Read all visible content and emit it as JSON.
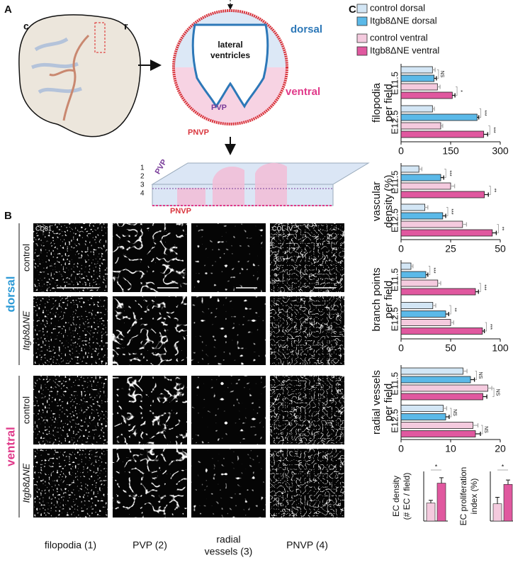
{
  "panel_a": {
    "label": "A",
    "c": "c",
    "r": "r",
    "dorsal": "dorsal",
    "lateral_ventricles": [
      "lateral",
      "ventricles"
    ],
    "ventral": "ventral",
    "pvp": "PVP",
    "pnvp": "PNVP",
    "layers": [
      "1",
      "2",
      "3",
      "4"
    ],
    "slab_pvp": "PVP",
    "slab_pnvp": "PNVP"
  },
  "panel_b": {
    "label": "B",
    "stain_left": "CD31",
    "stain_right": "COL IV",
    "regions": [
      {
        "name": "dorsal",
        "rows": [
          "control",
          "Itgb8ΔNE"
        ]
      },
      {
        "name": "ventral",
        "rows": [
          "control",
          "Itgb8ΔNE"
        ]
      }
    ],
    "columns": [
      [
        "filopodia (1)"
      ],
      [
        "PVP (2)"
      ],
      [
        "radial",
        "vessels (3)"
      ],
      [
        "PNVP (4)"
      ]
    ]
  },
  "panel_c": {
    "label": "C",
    "legend": [
      {
        "name": "control dorsal",
        "color": "#d3e6f5"
      },
      {
        "name": "Itgb8ΔNE dorsal",
        "color": "#5bb9e8"
      },
      {
        "name": "control ventral",
        "color": "#f4cade"
      },
      {
        "name": "Itgb8ΔNE ventral",
        "color": "#e0589f"
      }
    ]
  },
  "chart_data": [
    {
      "type": "hbar",
      "ylabel": [
        "filopodia",
        "per field"
      ],
      "categories": [
        "E11.5",
        "E12.5"
      ],
      "series": [
        {
          "values": [
            95,
            95
          ],
          "errors": [
            8,
            6
          ]
        },
        {
          "values": [
            100,
            230
          ],
          "errors": [
            7,
            5
          ]
        },
        {
          "values": [
            110,
            120
          ],
          "errors": [
            8,
            6
          ]
        },
        {
          "values": [
            155,
            250
          ],
          "errors": [
            8,
            12
          ]
        }
      ],
      "significance": [
        [
          "NS",
          "*"
        ],
        [
          "***",
          "***"
        ]
      ],
      "xlim": [
        0,
        300
      ],
      "xticks": [
        0,
        150,
        300
      ]
    },
    {
      "type": "hbar",
      "ylabel": [
        "vascular",
        "density (%)"
      ],
      "categories": [
        "E11.5",
        "E12.5"
      ],
      "series": [
        {
          "values": [
            9,
            12
          ],
          "errors": [
            1.5,
            1.5
          ]
        },
        {
          "values": [
            20,
            21
          ],
          "errors": [
            1.5,
            1.5
          ]
        },
        {
          "values": [
            25,
            31
          ],
          "errors": [
            2,
            2
          ]
        },
        {
          "values": [
            42,
            46
          ],
          "errors": [
            2,
            2
          ]
        }
      ],
      "significance": [
        [
          "***",
          "**"
        ],
        [
          "***",
          "**"
        ]
      ],
      "xlim": [
        0,
        50
      ],
      "xticks": [
        0,
        25,
        50
      ]
    },
    {
      "type": "hbar",
      "ylabel": [
        "branch points",
        "per field"
      ],
      "categories": [
        "E11.5",
        "E12.5"
      ],
      "series": [
        {
          "values": [
            10,
            32
          ],
          "errors": [
            2,
            3
          ]
        },
        {
          "values": [
            25,
            45
          ],
          "errors": [
            2,
            3
          ]
        },
        {
          "values": [
            37,
            50
          ],
          "errors": [
            3,
            3
          ]
        },
        {
          "values": [
            75,
            82
          ],
          "errors": [
            3,
            2
          ]
        }
      ],
      "significance": [
        [
          "***",
          "***"
        ],
        [
          "**",
          "***"
        ]
      ],
      "xlim": [
        0,
        100
      ],
      "xticks": [
        0,
        50,
        100
      ]
    },
    {
      "type": "hbar",
      "ylabel": [
        "radial vessels",
        "per field"
      ],
      "categories": [
        "E11.5",
        "E12.5"
      ],
      "series": [
        {
          "values": [
            12.5,
            8.5
          ],
          "errors": [
            0.8,
            0.7
          ]
        },
        {
          "values": [
            14,
            9
          ],
          "errors": [
            0.8,
            0.7
          ]
        },
        {
          "values": [
            17.5,
            14.5
          ],
          "errors": [
            0.8,
            1
          ]
        },
        {
          "values": [
            16.5,
            15
          ],
          "errors": [
            0.8,
            1
          ]
        }
      ],
      "significance": [
        [
          "NS",
          "NS"
        ],
        [
          "NS",
          "NS"
        ]
      ],
      "xlim": [
        0,
        20
      ],
      "xticks": [
        0,
        10,
        20
      ]
    },
    {
      "type": "minibar",
      "ylabel": [
        "EC density",
        "(# EC / field)"
      ],
      "values": [
        20,
        42
      ],
      "errors": [
        3,
        6
      ],
      "colors": [
        "#f4cade",
        "#e0589f"
      ],
      "significance": "*",
      "ylim": [
        0,
        55
      ]
    },
    {
      "type": "minibar",
      "ylabel": [
        "EC proliferation",
        "index (%)"
      ],
      "values": [
        8,
        17
      ],
      "errors": [
        3,
        2
      ],
      "colors": [
        "#f4cade",
        "#e0589f"
      ],
      "significance": "*",
      "ylim": [
        0,
        23
      ]
    }
  ]
}
